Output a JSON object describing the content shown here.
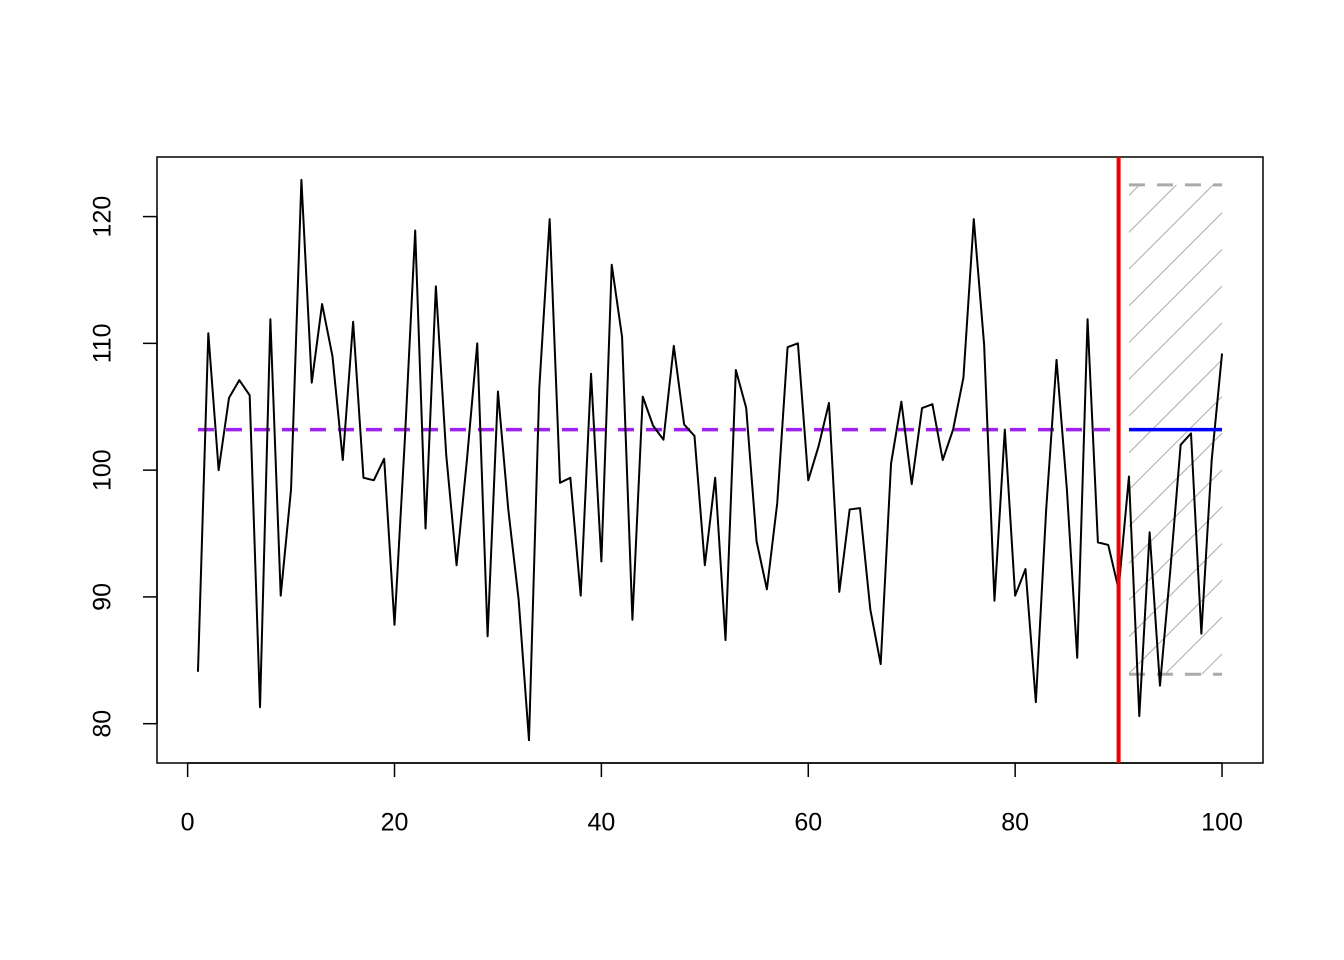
{
  "chart_data": {
    "type": "line",
    "x": [
      1,
      2,
      3,
      4,
      5,
      6,
      7,
      8,
      9,
      10,
      11,
      12,
      13,
      14,
      15,
      16,
      17,
      18,
      19,
      20,
      21,
      22,
      23,
      24,
      25,
      26,
      27,
      28,
      29,
      30,
      31,
      32,
      33,
      34,
      35,
      36,
      37,
      38,
      39,
      40,
      41,
      42,
      43,
      44,
      45,
      46,
      47,
      48,
      49,
      50,
      51,
      52,
      53,
      54,
      55,
      56,
      57,
      58,
      59,
      60,
      61,
      62,
      63,
      64,
      65,
      66,
      67,
      68,
      69,
      70,
      71,
      72,
      73,
      74,
      75,
      76,
      77,
      78,
      79,
      80,
      81,
      82,
      83,
      84,
      85,
      86,
      87,
      88,
      89,
      90,
      91,
      92,
      93,
      94,
      95,
      96,
      97,
      98,
      99,
      100
    ],
    "series": [
      {
        "color": "#000000",
        "values": [
          84.1,
          110.8,
          100.0,
          105.7,
          107.1,
          105.9,
          81.3,
          111.9,
          90.1,
          98.5,
          122.9,
          106.9,
          113.1,
          109.0,
          100.8,
          111.7,
          99.4,
          99.2,
          100.9,
          87.8,
          102.4,
          118.9,
          95.4,
          114.5,
          101.2,
          92.5,
          100.8,
          110.0,
          86.9,
          106.2,
          96.9,
          89.8,
          78.7,
          106.5,
          119.8,
          99.0,
          99.4,
          90.1,
          107.6,
          92.8,
          116.2,
          110.5,
          88.2,
          105.8,
          103.5,
          102.4,
          109.8,
          103.6,
          102.7,
          92.5,
          99.4,
          86.6,
          107.9,
          104.9,
          94.4,
          90.6,
          97.4,
          109.7,
          110.0,
          99.2,
          101.9,
          105.3,
          90.4,
          96.9,
          97.0,
          89.0,
          84.7,
          100.5,
          105.4,
          98.9,
          104.9,
          105.2,
          100.8,
          103.2,
          107.3,
          119.8,
          109.9,
          89.7,
          103.2,
          90.1,
          92.2,
          81.7,
          96.9,
          108.7,
          98.5,
          85.2,
          111.9,
          94.3,
          94.1,
          90.6,
          99.5,
          80.6,
          95.1,
          83.0,
          92.1,
          102.0,
          102.9,
          87.1,
          100.8,
          109.2
        ]
      }
    ],
    "mean_line": {
      "color": "#a020f0",
      "x": [
        1,
        90
      ],
      "values": [
        103.2,
        103.2
      ]
    },
    "forecast": {
      "color": "#0000ff",
      "x": [
        91,
        100
      ],
      "values": [
        103.2,
        103.2
      ]
    },
    "interval": {
      "color": "#aaaaaa",
      "x": [
        91,
        100
      ],
      "upper": [
        122.5,
        122.5
      ],
      "lower": [
        83.9,
        83.9
      ]
    },
    "vline": {
      "color": "#ee0000",
      "x": 90
    },
    "xlim": [
      -2.96,
      103.96
    ],
    "ylim": [
      76.9,
      124.7
    ],
    "xticks": [
      0,
      20,
      40,
      60,
      80,
      100
    ],
    "yticks": [
      80,
      90,
      100,
      110,
      120
    ]
  }
}
